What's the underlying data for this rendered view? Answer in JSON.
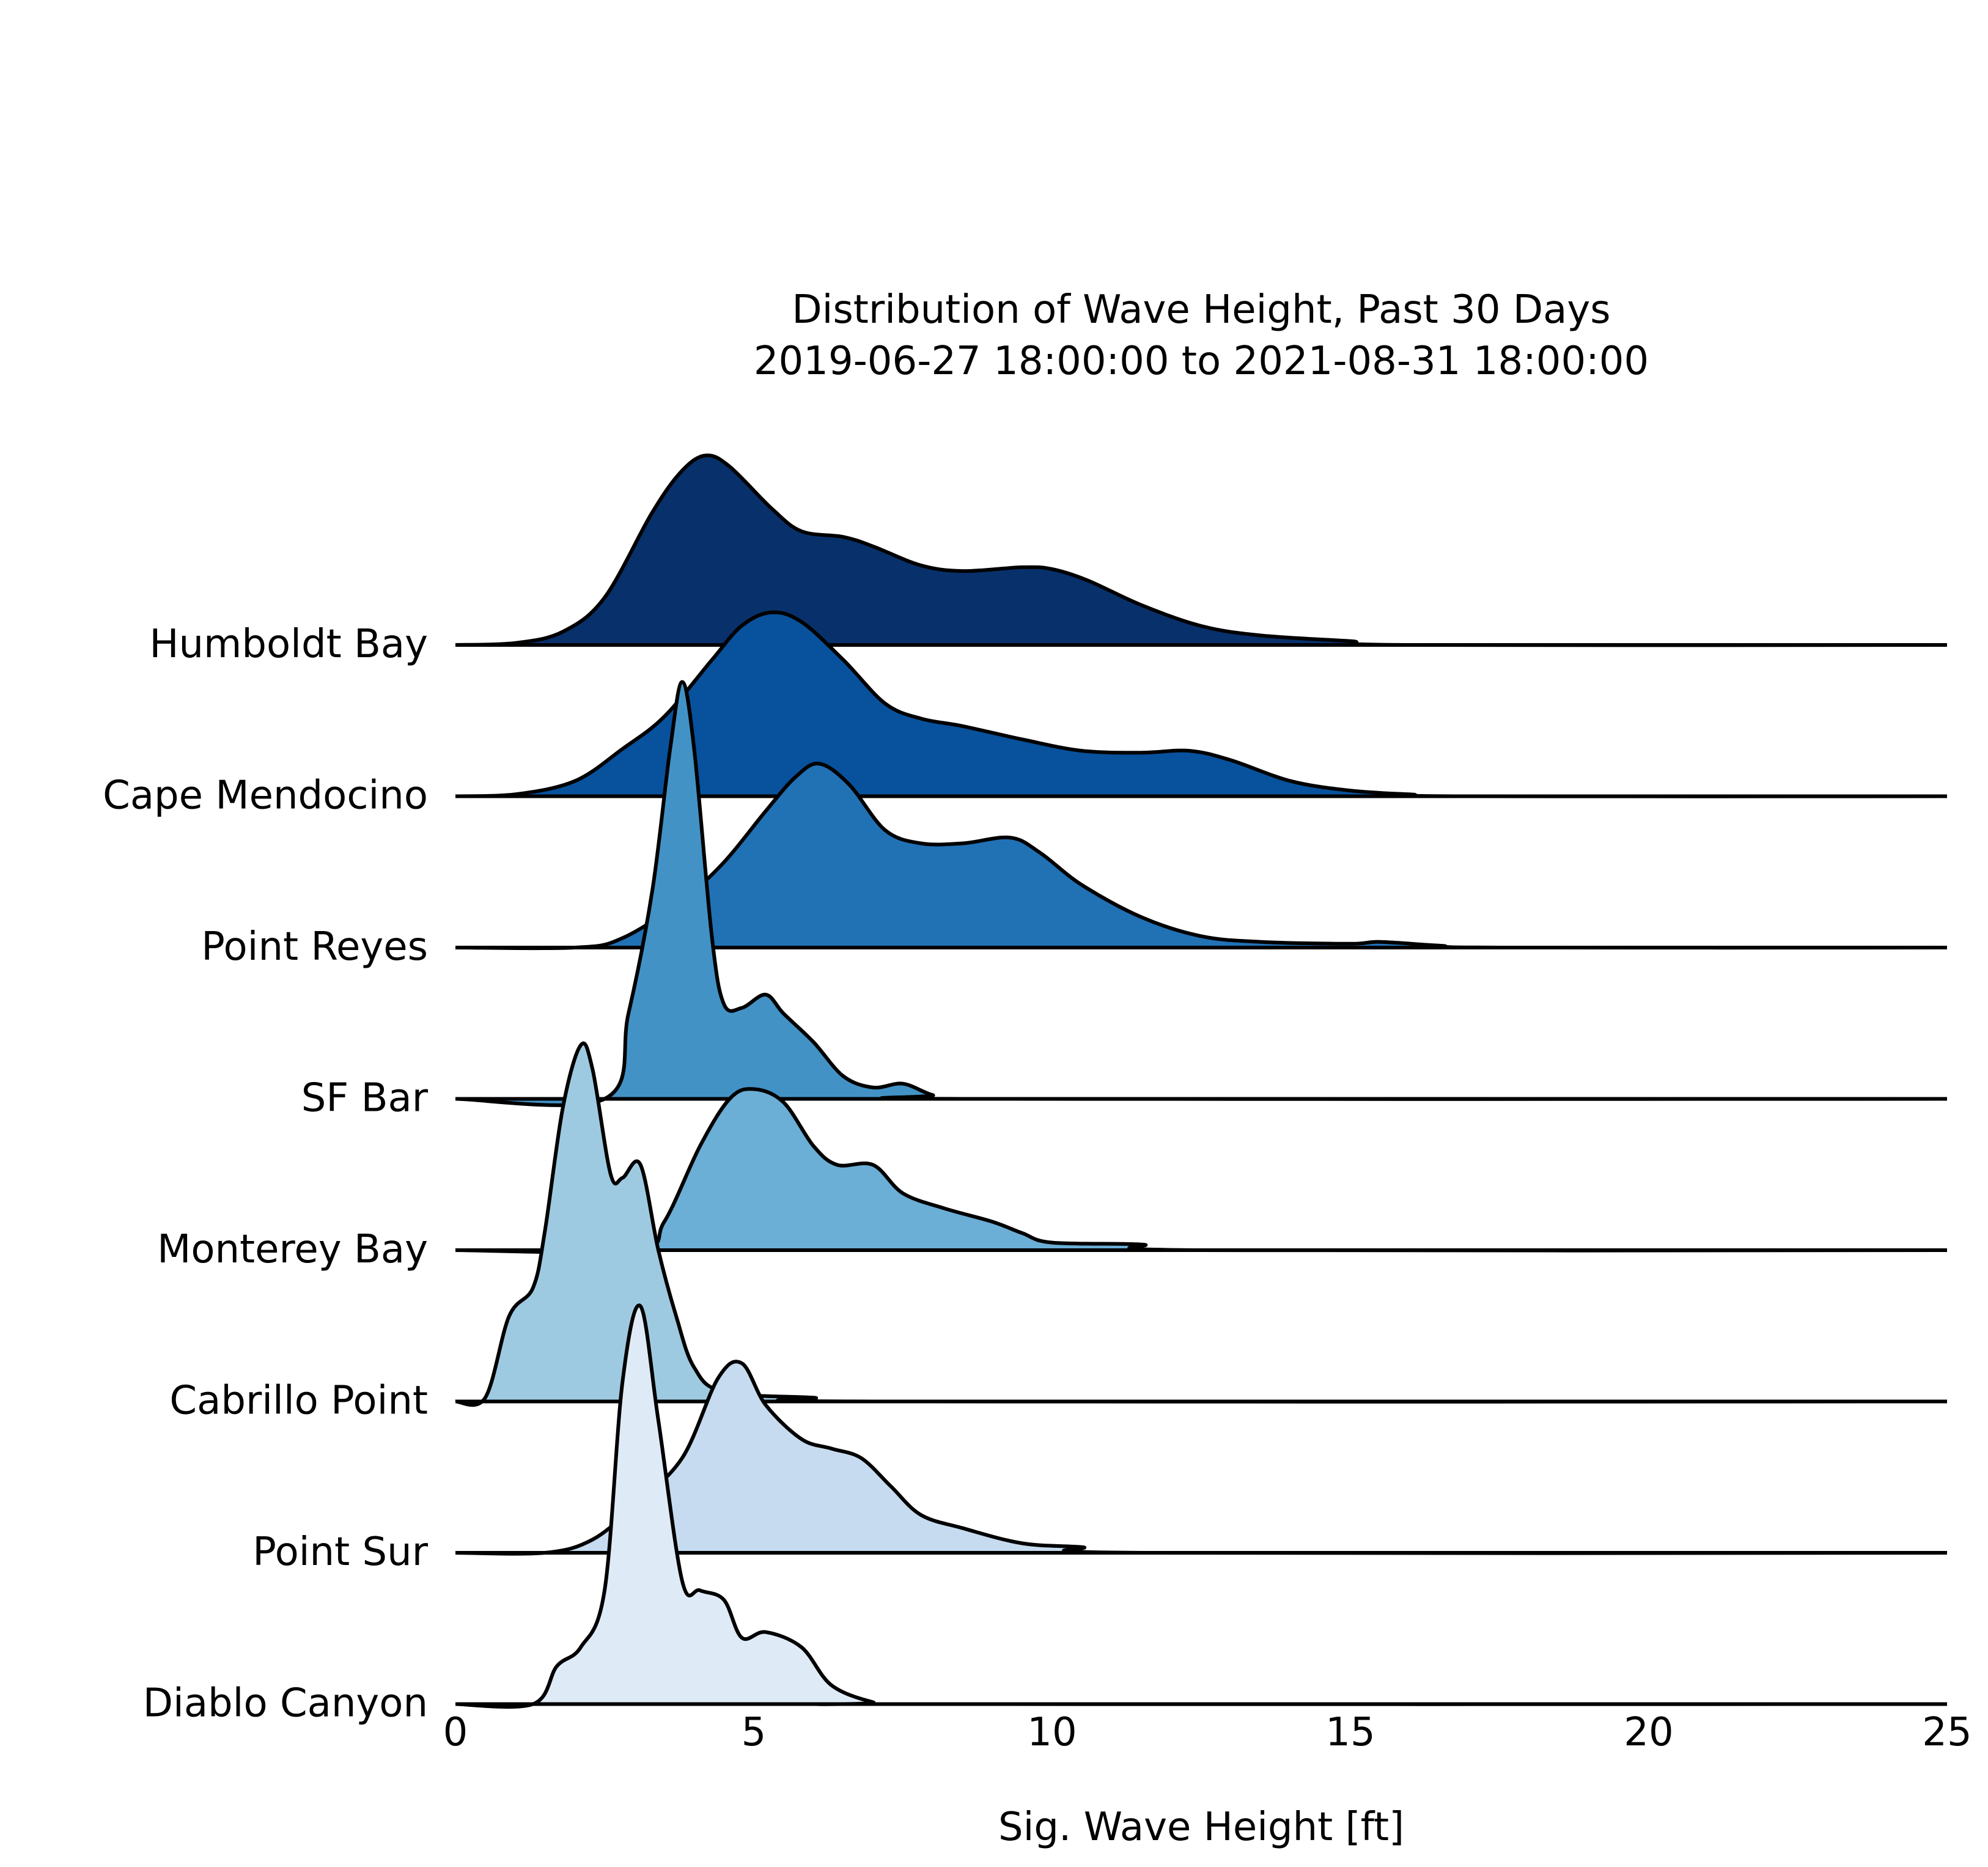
{
  "chart_data": {
    "type": "area",
    "subtype": "ridgeline",
    "title": "Distribution of Wave Height, Past 30 Days",
    "subtitle": "2019-06-27 18:00:00 to 2021-08-31 18:00:00",
    "xlabel": "Sig. Wave Height [ft]",
    "xlim": [
      0,
      25
    ],
    "xticks": [
      "0",
      "5",
      "10",
      "15",
      "20",
      "25"
    ],
    "grid": false,
    "series": [
      {
        "name": "Humboldt Bay",
        "color": "#08306b",
        "points": [
          [
            0,
            0
          ],
          [
            1,
            0.01
          ],
          [
            1.8,
            0.07
          ],
          [
            2.5,
            0.25
          ],
          [
            3.3,
            0.7
          ],
          [
            3.8,
            0.92
          ],
          [
            4.2,
            1.0
          ],
          [
            4.6,
            0.94
          ],
          [
            5.3,
            0.72
          ],
          [
            5.8,
            0.6
          ],
          [
            6.5,
            0.57
          ],
          [
            7,
            0.52
          ],
          [
            7.8,
            0.42
          ],
          [
            8.5,
            0.39
          ],
          [
            9.5,
            0.41
          ],
          [
            10,
            0.4
          ],
          [
            10.6,
            0.34
          ],
          [
            11.5,
            0.21
          ],
          [
            12.5,
            0.1
          ],
          [
            13.5,
            0.05
          ],
          [
            15,
            0.02
          ],
          [
            16,
            0
          ],
          [
            25,
            0
          ]
        ]
      },
      {
        "name": "Cape Mendocino",
        "color": "#08519c",
        "points": [
          [
            0,
            0
          ],
          [
            1,
            0.01
          ],
          [
            2,
            0.08
          ],
          [
            2.8,
            0.25
          ],
          [
            3.5,
            0.42
          ],
          [
            4.3,
            0.72
          ],
          [
            4.8,
            0.9
          ],
          [
            5.3,
            0.97
          ],
          [
            5.8,
            0.92
          ],
          [
            6.5,
            0.72
          ],
          [
            7.2,
            0.49
          ],
          [
            7.8,
            0.41
          ],
          [
            8.5,
            0.37
          ],
          [
            9.5,
            0.3
          ],
          [
            10.5,
            0.24
          ],
          [
            11.5,
            0.23
          ],
          [
            12.3,
            0.24
          ],
          [
            13,
            0.19
          ],
          [
            14,
            0.08
          ],
          [
            15,
            0.03
          ],
          [
            16,
            0.01
          ],
          [
            17,
            0
          ],
          [
            25,
            0
          ]
        ]
      },
      {
        "name": "Point Reyes",
        "color": "#2171b5",
        "points": [
          [
            0,
            0
          ],
          [
            2,
            0
          ],
          [
            2.8,
            0.05
          ],
          [
            3.8,
            0.25
          ],
          [
            4.5,
            0.45
          ],
          [
            5.2,
            0.72
          ],
          [
            5.7,
            0.9
          ],
          [
            6.1,
            0.97
          ],
          [
            6.6,
            0.86
          ],
          [
            7.2,
            0.62
          ],
          [
            7.8,
            0.55
          ],
          [
            8.5,
            0.55
          ],
          [
            9.3,
            0.58
          ],
          [
            9.8,
            0.5
          ],
          [
            10.5,
            0.33
          ],
          [
            11.5,
            0.16
          ],
          [
            12.5,
            0.06
          ],
          [
            13.5,
            0.03
          ],
          [
            15,
            0.02
          ],
          [
            15.5,
            0.03
          ],
          [
            16.5,
            0.01
          ],
          [
            17.5,
            0
          ],
          [
            25,
            0
          ]
        ]
      },
      {
        "name": "SF Bar",
        "color": "#4292c6",
        "points": [
          [
            0,
            0
          ],
          [
            2.5,
            0
          ],
          [
            2.9,
            0.45
          ],
          [
            3.3,
            1.1
          ],
          [
            3.6,
            1.85
          ],
          [
            3.8,
            2.2
          ],
          [
            4.0,
            1.85
          ],
          [
            4.3,
            0.85
          ],
          [
            4.5,
            0.5
          ],
          [
            4.8,
            0.48
          ],
          [
            5.2,
            0.55
          ],
          [
            5.5,
            0.45
          ],
          [
            6.0,
            0.3
          ],
          [
            6.5,
            0.12
          ],
          [
            7.0,
            0.06
          ],
          [
            7.5,
            0.08
          ],
          [
            8.0,
            0.02
          ],
          [
            8.5,
            0
          ],
          [
            25,
            0
          ]
        ]
      },
      {
        "name": "Monterey Bay",
        "color": "#6baed6",
        "points": [
          [
            0,
            0
          ],
          [
            3.0,
            0
          ],
          [
            3.5,
            0.15
          ],
          [
            4.1,
            0.55
          ],
          [
            4.6,
            0.8
          ],
          [
            5.0,
            0.85
          ],
          [
            5.5,
            0.78
          ],
          [
            6.0,
            0.55
          ],
          [
            6.4,
            0.45
          ],
          [
            7.0,
            0.45
          ],
          [
            7.5,
            0.3
          ],
          [
            8.2,
            0.22
          ],
          [
            9.0,
            0.15
          ],
          [
            9.5,
            0.09
          ],
          [
            10.0,
            0.04
          ],
          [
            11.5,
            0.03
          ],
          [
            12.5,
            0
          ],
          [
            25,
            0
          ]
        ]
      },
      {
        "name": "Cabrillo Point",
        "color": "#9ecae1",
        "points": [
          [
            0,
            0
          ],
          [
            0.5,
            0.02
          ],
          [
            0.9,
            0.45
          ],
          [
            1.3,
            0.6
          ],
          [
            1.5,
            0.9
          ],
          [
            1.8,
            1.55
          ],
          [
            2.1,
            1.88
          ],
          [
            2.3,
            1.75
          ],
          [
            2.6,
            1.2
          ],
          [
            2.8,
            1.18
          ],
          [
            3.1,
            1.25
          ],
          [
            3.4,
            0.8
          ],
          [
            3.7,
            0.45
          ],
          [
            4.0,
            0.18
          ],
          [
            4.5,
            0.05
          ],
          [
            6.0,
            0.02
          ],
          [
            7.0,
            0
          ],
          [
            25,
            0
          ]
        ]
      },
      {
        "name": "Point Sur",
        "color": "#c6dbef",
        "points": [
          [
            0,
            0
          ],
          [
            1.5,
            0
          ],
          [
            2.3,
            0.07
          ],
          [
            3.0,
            0.25
          ],
          [
            3.8,
            0.5
          ],
          [
            4.4,
            0.92
          ],
          [
            4.8,
            1.0
          ],
          [
            5.2,
            0.78
          ],
          [
            5.8,
            0.6
          ],
          [
            6.3,
            0.55
          ],
          [
            6.8,
            0.5
          ],
          [
            7.3,
            0.35
          ],
          [
            7.8,
            0.2
          ],
          [
            8.5,
            0.13
          ],
          [
            9.5,
            0.05
          ],
          [
            10.5,
            0.03
          ],
          [
            11.5,
            0
          ],
          [
            25,
            0
          ]
        ]
      },
      {
        "name": "Diablo Canyon",
        "color": "#deebf7",
        "points": [
          [
            0,
            0
          ],
          [
            1.3,
            0
          ],
          [
            1.7,
            0.2
          ],
          [
            2.1,
            0.3
          ],
          [
            2.5,
            0.6
          ],
          [
            2.8,
            1.7
          ],
          [
            3.1,
            2.1
          ],
          [
            3.4,
            1.5
          ],
          [
            3.8,
            0.65
          ],
          [
            4.1,
            0.6
          ],
          [
            4.5,
            0.55
          ],
          [
            4.8,
            0.35
          ],
          [
            5.2,
            0.38
          ],
          [
            5.8,
            0.3
          ],
          [
            6.3,
            0.1
          ],
          [
            7.0,
            0.01
          ],
          [
            7.5,
            0
          ],
          [
            25,
            0
          ]
        ]
      }
    ]
  }
}
